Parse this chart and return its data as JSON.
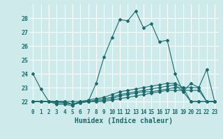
{
  "title": "",
  "xlabel": "Humidex (Indice chaleur)",
  "xlim": [
    -0.5,
    23.5
  ],
  "ylim": [
    21.5,
    29.0
  ],
  "yticks": [
    22,
    23,
    24,
    25,
    26,
    27,
    28
  ],
  "xticks": [
    0,
    1,
    2,
    3,
    4,
    5,
    6,
    7,
    8,
    9,
    10,
    11,
    12,
    13,
    14,
    15,
    16,
    17,
    18,
    19,
    20,
    21,
    22,
    23
  ],
  "bg_color": "#ceeaea",
  "grid_color": "#ffffff",
  "line_color": "#1a6b6b",
  "series": [
    [
      24.0,
      22.9,
      22.0,
      21.8,
      21.8,
      21.7,
      22.0,
      22.0,
      23.3,
      25.2,
      26.6,
      27.9,
      27.8,
      28.5,
      27.3,
      27.6,
      26.3,
      26.4,
      24.0,
      22.7,
      23.3,
      23.0,
      24.3,
      22.0
    ],
    [
      22.0,
      22.0,
      22.0,
      22.0,
      22.0,
      22.0,
      22.0,
      22.0,
      22.0,
      22.0,
      22.1,
      22.2,
      22.3,
      22.4,
      22.5,
      22.6,
      22.7,
      22.8,
      22.8,
      22.8,
      22.8,
      22.8,
      22.0,
      22.0
    ],
    [
      22.0,
      22.0,
      22.0,
      21.9,
      21.9,
      21.8,
      21.9,
      22.0,
      22.0,
      22.1,
      22.2,
      22.4,
      22.5,
      22.6,
      22.7,
      22.7,
      22.8,
      22.9,
      23.0,
      23.0,
      23.0,
      23.0,
      22.0,
      22.0
    ],
    [
      22.0,
      22.0,
      22.0,
      22.0,
      22.0,
      21.8,
      21.9,
      22.0,
      22.1,
      22.2,
      22.3,
      22.5,
      22.6,
      22.7,
      22.8,
      22.9,
      23.0,
      23.1,
      23.2,
      22.7,
      22.0,
      22.0,
      22.0,
      22.0
    ],
    [
      22.0,
      22.0,
      22.0,
      22.0,
      21.9,
      21.8,
      22.0,
      22.1,
      22.2,
      22.3,
      22.5,
      22.7,
      22.8,
      22.9,
      23.0,
      23.1,
      23.2,
      23.3,
      23.3,
      23.0,
      22.0,
      22.0,
      22.0,
      22.0
    ]
  ],
  "marker": "D",
  "markersize": 2.0,
  "linewidth": 0.8
}
